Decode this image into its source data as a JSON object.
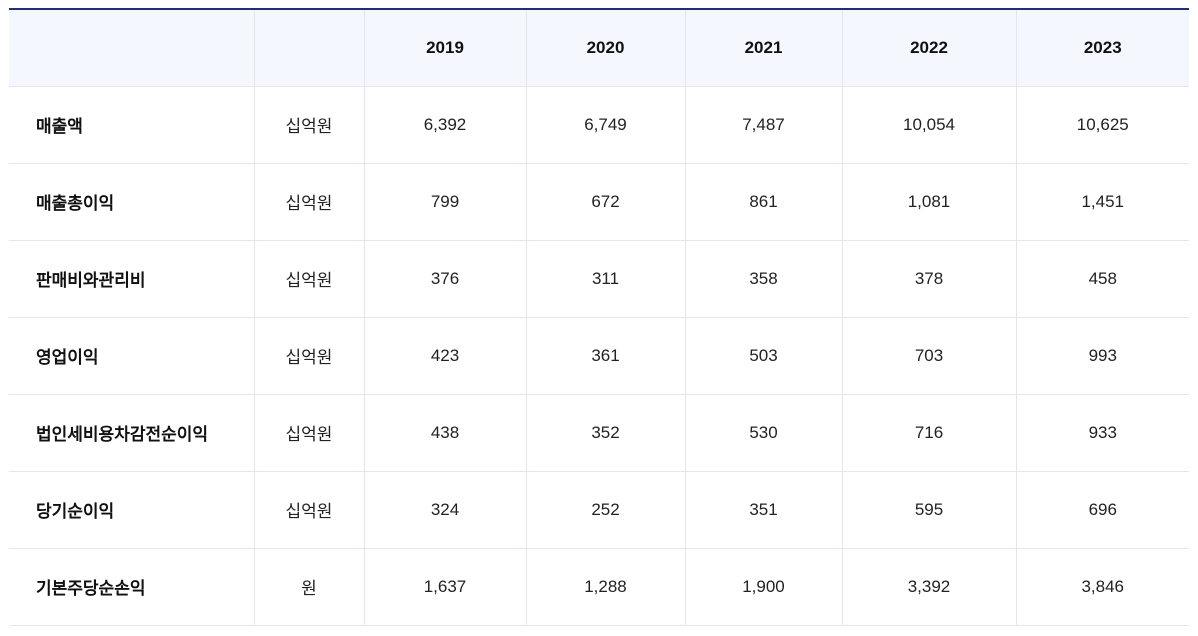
{
  "table": {
    "header": {
      "item": "",
      "unit": "",
      "years": [
        "2019",
        "2020",
        "2021",
        "2022",
        "2023"
      ]
    },
    "rows": [
      {
        "item": "매출액",
        "unit": "십억원",
        "values": [
          "6,392",
          "6,749",
          "7,487",
          "10,054",
          "10,625"
        ]
      },
      {
        "item": "매출총이익",
        "unit": "십억원",
        "values": [
          "799",
          "672",
          "861",
          "1,081",
          "1,451"
        ]
      },
      {
        "item": "판매비와관리비",
        "unit": "십억원",
        "values": [
          "376",
          "311",
          "358",
          "378",
          "458"
        ]
      },
      {
        "item": "영업이익",
        "unit": "십억원",
        "values": [
          "423",
          "361",
          "503",
          "703",
          "993"
        ]
      },
      {
        "item": "법인세비용차감전순이익",
        "unit": "십억원",
        "values": [
          "438",
          "352",
          "530",
          "716",
          "933"
        ]
      },
      {
        "item": "당기순이익",
        "unit": "십억원",
        "values": [
          "324",
          "252",
          "351",
          "595",
          "696"
        ]
      },
      {
        "item": "기본주당순손익",
        "unit": "원",
        "values": [
          "1,637",
          "1,288",
          "1,900",
          "3,392",
          "3,846"
        ]
      }
    ]
  }
}
